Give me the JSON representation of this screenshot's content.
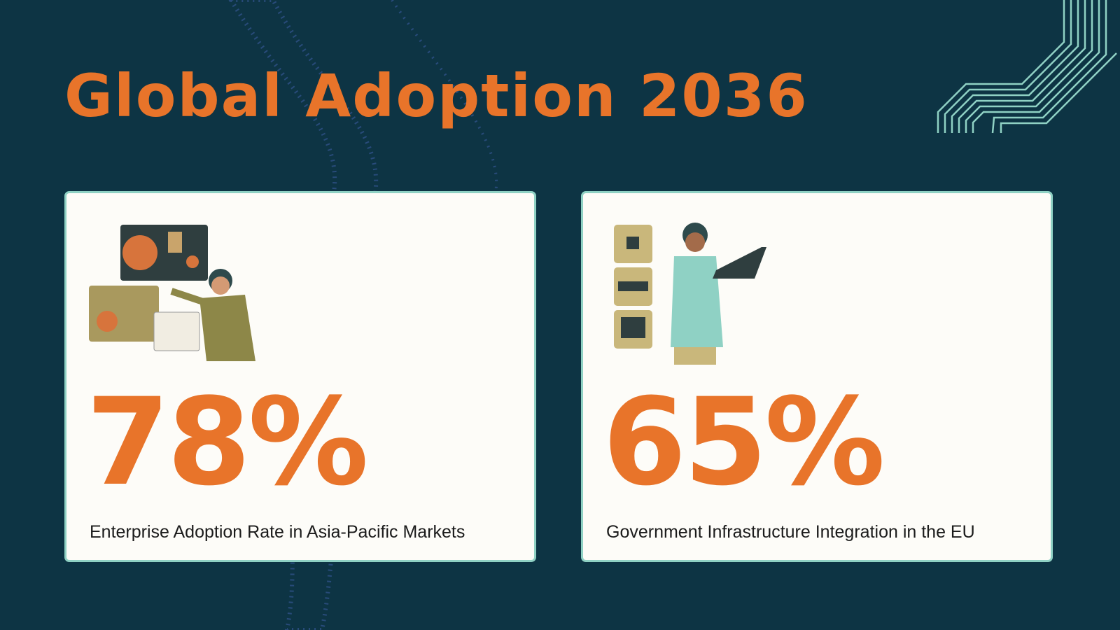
{
  "title": "Global Adoption 2036",
  "cards": [
    {
      "value": "78%",
      "label": "Enterprise Adoption Rate in Asia-Pacific Markets"
    },
    {
      "value": "65%",
      "label": "Government Infrastructure Integration in the EU"
    }
  ]
}
